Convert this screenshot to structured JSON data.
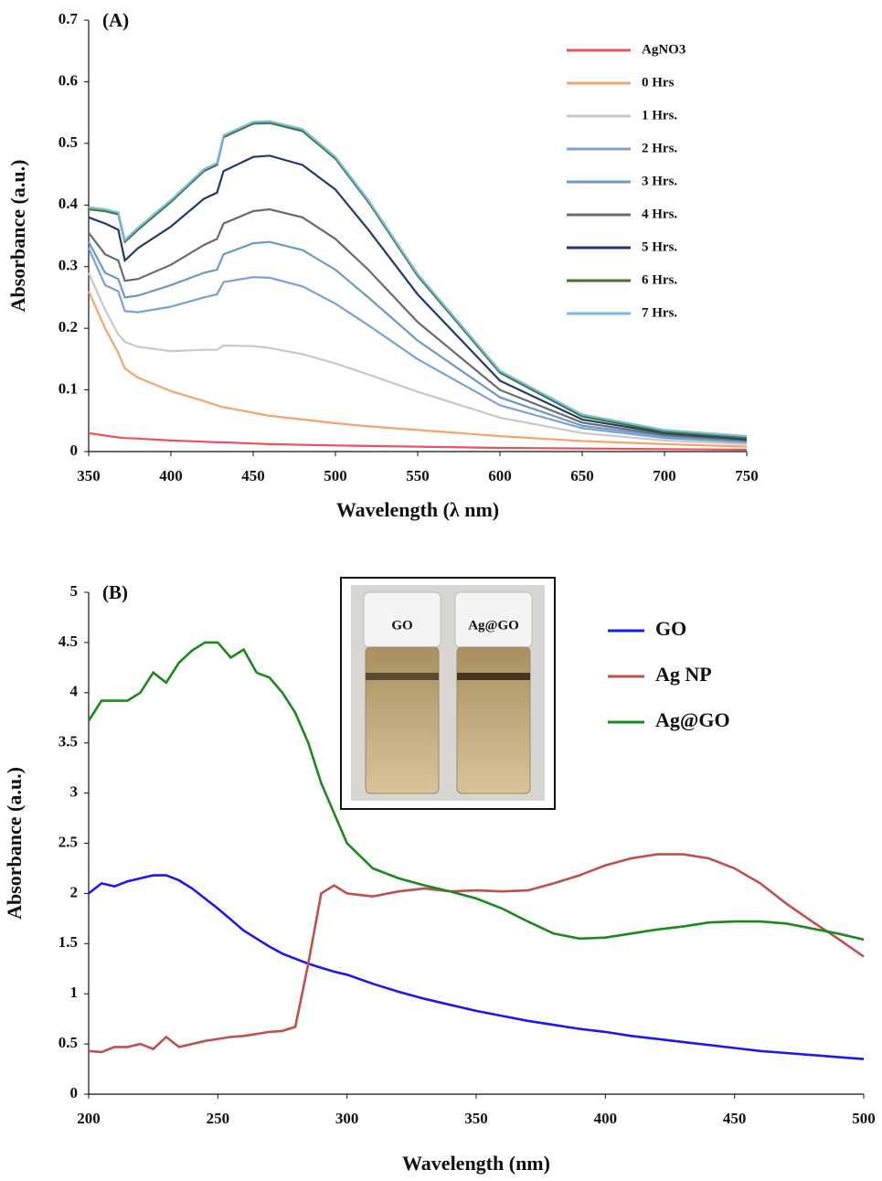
{
  "chart_data": [
    {
      "type": "line",
      "title": "(A)",
      "x_label": "Wavelength (λ nm)",
      "y_label": "Absorbance (a.u.)",
      "x": [
        350,
        360,
        368,
        372,
        380,
        400,
        420,
        428,
        432,
        450,
        460,
        480,
        500,
        520,
        550,
        600,
        650,
        700,
        750
      ],
      "series": [
        {
          "name": "AgNO3",
          "color": "#e8545a",
          "values": [
            0.03,
            0.026,
            0.023,
            0.022,
            0.021,
            0.018,
            0.016,
            0.015,
            0.015,
            0.013,
            0.012,
            0.011,
            0.01,
            0.009,
            0.008,
            0.006,
            0.005,
            0.004,
            0.003
          ]
        },
        {
          "name": "0 Hrs",
          "color": "#f4a46c",
          "values": [
            0.26,
            0.2,
            0.16,
            0.135,
            0.12,
            0.098,
            0.082,
            0.075,
            0.072,
            0.063,
            0.058,
            0.052,
            0.046,
            0.041,
            0.035,
            0.025,
            0.017,
            0.012,
            0.008
          ]
        },
        {
          "name": "1 Hrs.",
          "color": "#c8c8c8",
          "values": [
            0.29,
            0.23,
            0.19,
            0.178,
            0.17,
            0.163,
            0.165,
            0.165,
            0.172,
            0.171,
            0.168,
            0.158,
            0.143,
            0.125,
            0.097,
            0.055,
            0.03,
            0.018,
            0.012
          ]
        },
        {
          "name": "2 Hrs.",
          "color": "#7aa0d8",
          "values": [
            0.33,
            0.27,
            0.26,
            0.228,
            0.226,
            0.235,
            0.25,
            0.255,
            0.275,
            0.283,
            0.282,
            0.268,
            0.24,
            0.205,
            0.15,
            0.075,
            0.038,
            0.022,
            0.015
          ]
        },
        {
          "name": "3 Hrs.",
          "color": "#6a9ac8",
          "values": [
            0.34,
            0.29,
            0.28,
            0.25,
            0.253,
            0.27,
            0.29,
            0.295,
            0.32,
            0.338,
            0.34,
            0.327,
            0.295,
            0.25,
            0.18,
            0.088,
            0.042,
            0.025,
            0.017
          ]
        },
        {
          "name": "4 Hrs.",
          "color": "#6a6a6a",
          "values": [
            0.355,
            0.32,
            0.31,
            0.277,
            0.28,
            0.303,
            0.335,
            0.345,
            0.37,
            0.39,
            0.393,
            0.38,
            0.345,
            0.295,
            0.21,
            0.1,
            0.047,
            0.027,
            0.018
          ]
        },
        {
          "name": "5 Hrs.",
          "color": "#1f3a6e",
          "values": [
            0.38,
            0.37,
            0.36,
            0.31,
            0.33,
            0.365,
            0.41,
            0.42,
            0.455,
            0.478,
            0.48,
            0.465,
            0.425,
            0.36,
            0.255,
            0.115,
            0.052,
            0.03,
            0.02
          ]
        },
        {
          "name": "6 Hrs.",
          "color": "#3a7a2a",
          "values": [
            0.393,
            0.39,
            0.385,
            0.34,
            0.36,
            0.405,
            0.455,
            0.465,
            0.51,
            0.532,
            0.533,
            0.52,
            0.475,
            0.405,
            0.285,
            0.128,
            0.057,
            0.032,
            0.022
          ]
        },
        {
          "name": "7 Hrs.",
          "color": "#7ab8e8",
          "values": [
            0.396,
            0.393,
            0.388,
            0.343,
            0.363,
            0.408,
            0.458,
            0.468,
            0.513,
            0.535,
            0.536,
            0.523,
            0.478,
            0.408,
            0.288,
            0.131,
            0.06,
            0.035,
            0.025
          ]
        }
      ],
      "xlim": [
        350,
        750
      ],
      "xticks": [
        350,
        400,
        450,
        500,
        550,
        600,
        650,
        700,
        750
      ],
      "ylim": [
        0,
        0.7
      ],
      "yticks": [
        0,
        0.1,
        0.2,
        0.3,
        0.4,
        0.5,
        0.6,
        0.7
      ],
      "legend": "right"
    },
    {
      "type": "line",
      "title": "(B)",
      "x_label": "Wavelength (nm)",
      "y_label": "Absorbance (a.u.)",
      "inset_labels": [
        "GO",
        "Ag@GO"
      ],
      "x": [
        200,
        205,
        210,
        215,
        220,
        225,
        230,
        235,
        240,
        245,
        250,
        255,
        260,
        265,
        270,
        275,
        280,
        285,
        290,
        295,
        300,
        310,
        320,
        330,
        340,
        350,
        360,
        370,
        380,
        390,
        400,
        410,
        420,
        430,
        440,
        450,
        460,
        470,
        480,
        490,
        500
      ],
      "series": [
        {
          "name": "GO",
          "color": "#1a1aee",
          "values": [
            2.0,
            2.1,
            2.07,
            2.12,
            2.15,
            2.18,
            2.18,
            2.13,
            2.05,
            1.95,
            1.85,
            1.74,
            1.63,
            1.55,
            1.47,
            1.4,
            1.35,
            1.3,
            1.26,
            1.22,
            1.19,
            1.1,
            1.02,
            0.95,
            0.89,
            0.83,
            0.78,
            0.73,
            0.69,
            0.65,
            0.62,
            0.58,
            0.55,
            0.52,
            0.49,
            0.46,
            0.43,
            0.41,
            0.39,
            0.37,
            0.35
          ]
        },
        {
          "name": "Ag NP",
          "color": "#c0504d",
          "values": [
            0.43,
            0.42,
            0.47,
            0.47,
            0.5,
            0.45,
            0.57,
            0.47,
            0.5,
            0.53,
            0.55,
            0.57,
            0.58,
            0.6,
            0.62,
            0.63,
            0.67,
            1.3,
            2.0,
            2.08,
            2.0,
            1.97,
            2.02,
            2.05,
            2.02,
            2.03,
            2.02,
            2.03,
            2.1,
            2.18,
            2.28,
            2.35,
            2.39,
            2.39,
            2.35,
            2.25,
            2.1,
            1.9,
            1.72,
            1.55,
            1.37
          ]
        },
        {
          "name": "Ag@GO",
          "color": "#1a8a1a",
          "values": [
            3.72,
            3.92,
            3.92,
            3.92,
            4.0,
            4.2,
            4.1,
            4.3,
            4.42,
            4.5,
            4.5,
            4.35,
            4.43,
            4.2,
            4.15,
            4.0,
            3.8,
            3.5,
            3.1,
            2.8,
            2.5,
            2.25,
            2.15,
            2.08,
            2.02,
            1.95,
            1.85,
            1.72,
            1.6,
            1.55,
            1.56,
            1.6,
            1.64,
            1.67,
            1.71,
            1.72,
            1.72,
            1.7,
            1.65,
            1.6,
            1.54
          ]
        }
      ],
      "xlim": [
        200,
        500
      ],
      "xticks": [
        200,
        250,
        300,
        350,
        400,
        450,
        500
      ],
      "ylim": [
        0,
        5
      ],
      "yticks": [
        0,
        0.5,
        1,
        1.5,
        2,
        2.5,
        3,
        3.5,
        4,
        4.5,
        5
      ],
      "legend": "right"
    }
  ]
}
